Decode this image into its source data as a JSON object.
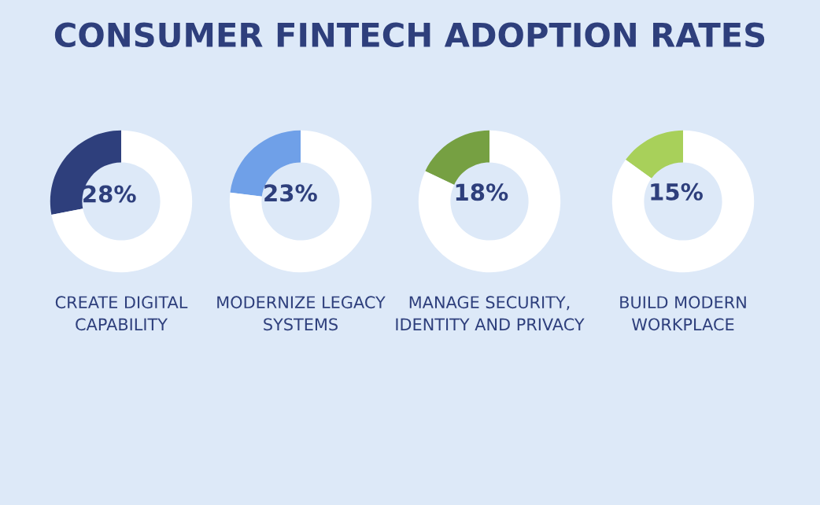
{
  "chart_data": [
    {
      "type": "donut",
      "title": "CONSUMER FINTECH ADOPTION RATES",
      "xlabel": "CREATE DIGITAL\nCAPABILITY",
      "categories": [
        null,
        null
      ],
      "values": [
        28,
        72
      ],
      "colors": [
        "#2e3f7c",
        "#ffffff"
      ],
      "value_labels": [
        "28%",
        null
      ]
    },
    {
      "type": "donut",
      "xlabel": "MODERNIZE LEGACY\nSYSTEMS",
      "categories": [
        null,
        null
      ],
      "values": [
        23,
        77
      ],
      "colors": [
        "#6fa0e8",
        "#ffffff"
      ],
      "value_labels": [
        "23%",
        null
      ]
    },
    {
      "type": "donut",
      "xlabel": "MANAGE SECURITY,\nIDENTITY AND PRIVACY",
      "categories": [
        null,
        null
      ],
      "values": [
        18,
        82
      ],
      "colors": [
        "#76a042",
        "#ffffff"
      ],
      "value_labels": [
        "18%",
        null
      ]
    },
    {
      "type": "donut",
      "xlabel": "BUILD MODERN\nWORKPLACE",
      "categories": [
        null,
        null
      ],
      "values": [
        15,
        85
      ],
      "colors": [
        "#a8d05a",
        "#ffffff"
      ],
      "value_labels": [
        "15%",
        null
      ]
    }
  ]
}
